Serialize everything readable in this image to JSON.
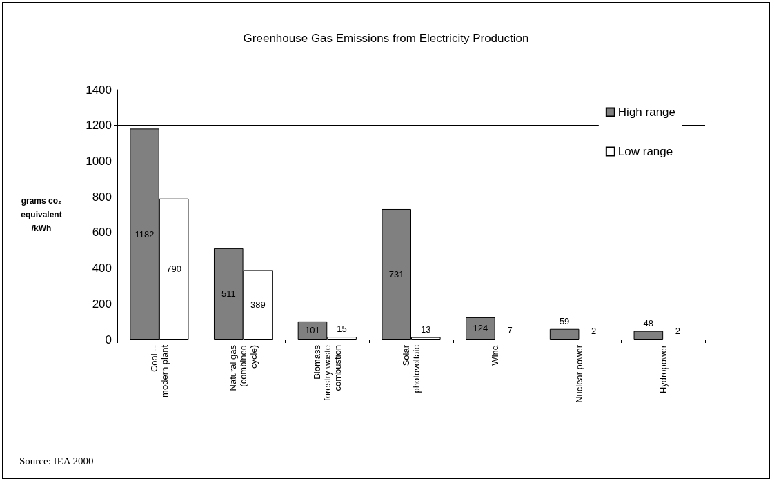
{
  "chart_data": {
    "type": "bar",
    "title": "Greenhouse Gas Emissions from Electricity Production",
    "ylabel": "grams co₂\nequivalent\n/kWh",
    "categories": [
      "Coal --\nmodern plant",
      "Natural gas\n(combined\ncycle)",
      "Biomass\nforestry waste\ncombustion",
      "Solar\nphotovoltaic",
      "Wind",
      "Nuclear power",
      "Hydropower"
    ],
    "series": [
      {
        "name": "High range",
        "color": "#808080",
        "values": [
          1182,
          511,
          101,
          731,
          124,
          59,
          48
        ]
      },
      {
        "name": "Low range",
        "color": "#ffffff",
        "values": [
          790,
          389,
          15,
          13,
          7,
          2,
          2
        ]
      }
    ],
    "ylim": [
      0,
      1400
    ],
    "yticks": [
      0,
      200,
      400,
      600,
      800,
      1000,
      1200,
      1400
    ],
    "grid": "y",
    "legend": "top right",
    "data_labels": true,
    "annotations": [
      "Source: IEA 2000"
    ]
  }
}
